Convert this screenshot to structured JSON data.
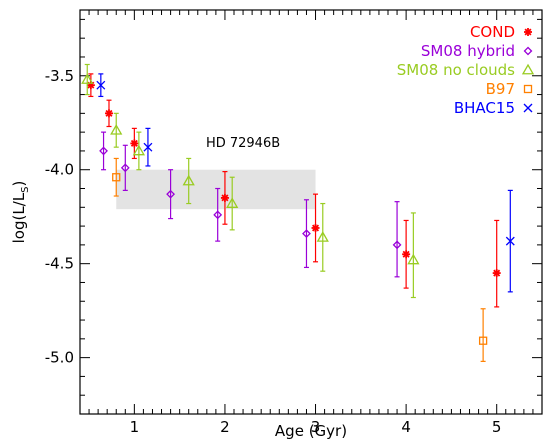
{
  "chart_data": {
    "type": "scatter",
    "title": "",
    "xlabel": "Age (Gyr)",
    "ylabel": "log(L/L",
    "ylabel_sub": "S",
    "ylabel_close": ")",
    "xlim": [
      0.4,
      5.5
    ],
    "ylim": [
      -5.3,
      -3.15
    ],
    "x_ticks": [
      1,
      2,
      3,
      4,
      5
    ],
    "y_ticks": [
      -3.5,
      -4.0,
      -4.5,
      -5.0
    ],
    "x_tick_labels": [
      "1",
      "2",
      "3",
      "4",
      "5"
    ],
    "y_tick_labels": [
      "-3.5",
      "-4.0",
      "-4.5",
      "-5.0"
    ],
    "grid": false,
    "legend_position": "top-right",
    "annotation": {
      "text": "HD 72946B",
      "x": 2.2,
      "y": -3.88
    },
    "band": {
      "x0": 0.8,
      "x1": 3.0,
      "y0": -4.21,
      "y1": -4.0,
      "color": "#e3e3e3"
    },
    "series": [
      {
        "name": "COND",
        "marker": "asterisk",
        "color": "#ff0000",
        "points": [
          {
            "x": 0.52,
            "y": -3.55,
            "yerr_low": 0.06,
            "yerr_high": 0.06
          },
          {
            "x": 0.72,
            "y": -3.7,
            "yerr_low": 0.07,
            "yerr_high": 0.07
          },
          {
            "x": 1.0,
            "y": -3.86,
            "yerr_low": 0.08,
            "yerr_high": 0.08
          },
          {
            "x": 2.0,
            "y": -4.15,
            "yerr_low": 0.14,
            "yerr_high": 0.14
          },
          {
            "x": 3.0,
            "y": -4.31,
            "yerr_low": 0.18,
            "yerr_high": 0.18
          },
          {
            "x": 4.0,
            "y": -4.45,
            "yerr_low": 0.18,
            "yerr_high": 0.18
          },
          {
            "x": 5.0,
            "y": -4.55,
            "yerr_low": 0.18,
            "yerr_high": 0.28
          }
        ]
      },
      {
        "name": "SM08 hybrid",
        "marker": "diamond",
        "color": "#9a00d8",
        "points": [
          {
            "x": 0.66,
            "y": -3.9,
            "yerr_low": 0.1,
            "yerr_high": 0.1
          },
          {
            "x": 0.9,
            "y": -3.99,
            "yerr_low": 0.12,
            "yerr_high": 0.12
          },
          {
            "x": 1.4,
            "y": -4.13,
            "yerr_low": 0.13,
            "yerr_high": 0.13
          },
          {
            "x": 1.92,
            "y": -4.24,
            "yerr_low": 0.14,
            "yerr_high": 0.14
          },
          {
            "x": 2.9,
            "y": -4.34,
            "yerr_low": 0.18,
            "yerr_high": 0.18
          },
          {
            "x": 3.9,
            "y": -4.4,
            "yerr_low": 0.17,
            "yerr_high": 0.23
          }
        ]
      },
      {
        "name": "SM08 no clouds",
        "marker": "triangle",
        "color": "#99cc22",
        "points": [
          {
            "x": 0.48,
            "y": -3.52,
            "yerr_low": 0.08,
            "yerr_high": 0.08
          },
          {
            "x": 0.8,
            "y": -3.79,
            "yerr_low": 0.09,
            "yerr_high": 0.09
          },
          {
            "x": 1.05,
            "y": -3.9,
            "yerr_low": 0.1,
            "yerr_high": 0.1
          },
          {
            "x": 1.6,
            "y": -4.06,
            "yerr_low": 0.12,
            "yerr_high": 0.12
          },
          {
            "x": 2.08,
            "y": -4.18,
            "yerr_low": 0.14,
            "yerr_high": 0.14
          },
          {
            "x": 3.08,
            "y": -4.36,
            "yerr_low": 0.18,
            "yerr_high": 0.18
          },
          {
            "x": 4.08,
            "y": -4.48,
            "yerr_low": 0.2,
            "yerr_high": 0.25
          }
        ]
      },
      {
        "name": "B97",
        "marker": "square",
        "color": "#ff8000",
        "points": [
          {
            "x": 0.8,
            "y": -4.04,
            "yerr_low": 0.1,
            "yerr_high": 0.1
          },
          {
            "x": 4.85,
            "y": -4.91,
            "yerr_low": 0.11,
            "yerr_high": 0.17
          }
        ]
      },
      {
        "name": "BHAC15",
        "marker": "cross",
        "color": "#0000ff",
        "points": [
          {
            "x": 0.63,
            "y": -3.55,
            "yerr_low": 0.06,
            "yerr_high": 0.06
          },
          {
            "x": 1.15,
            "y": -3.88,
            "yerr_low": 0.1,
            "yerr_high": 0.1
          },
          {
            "x": 5.15,
            "y": -4.38,
            "yerr_low": 0.27,
            "yerr_high": 0.27
          }
        ]
      }
    ]
  }
}
